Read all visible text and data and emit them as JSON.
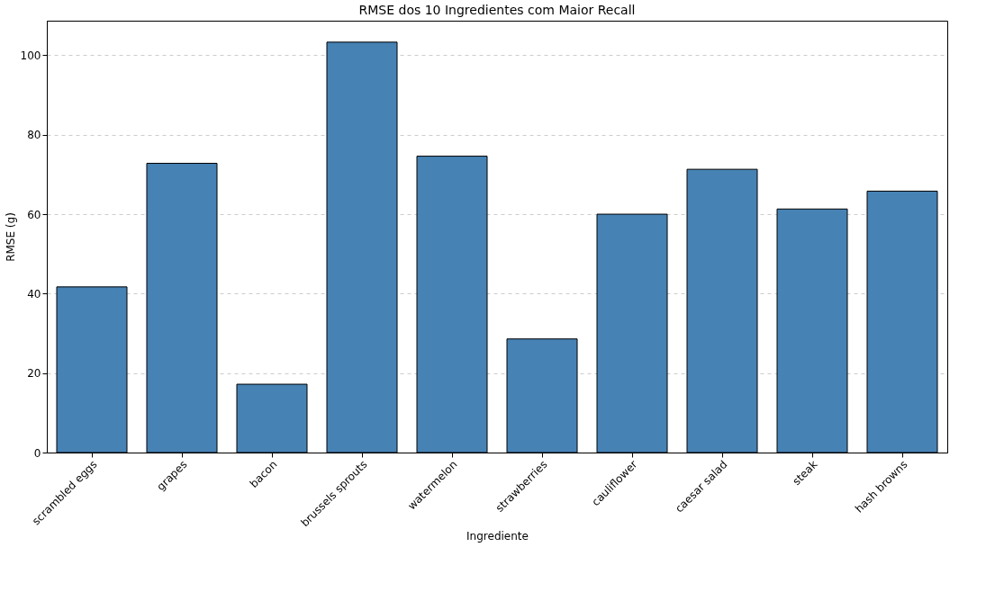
{
  "chart_data": {
    "type": "bar",
    "title": "RMSE dos 10 Ingredientes com Maior Recall",
    "xlabel": "Ingrediente",
    "ylabel": "RMSE (g)",
    "categories": [
      "scrambled eggs",
      "grapes",
      "bacon",
      "brussels sprouts",
      "watermelon",
      "strawberries",
      "cauliflower",
      "caesar salad",
      "steak",
      "hash browns"
    ],
    "values": [
      41.7,
      72.8,
      17.2,
      103.3,
      74.6,
      28.6,
      60.0,
      71.3,
      61.3,
      65.8
    ],
    "color": "#4682b4",
    "ylim": [
      0,
      108.7
    ],
    "yticks": [
      0,
      20,
      40,
      60,
      80,
      100
    ],
    "grid": "y"
  }
}
